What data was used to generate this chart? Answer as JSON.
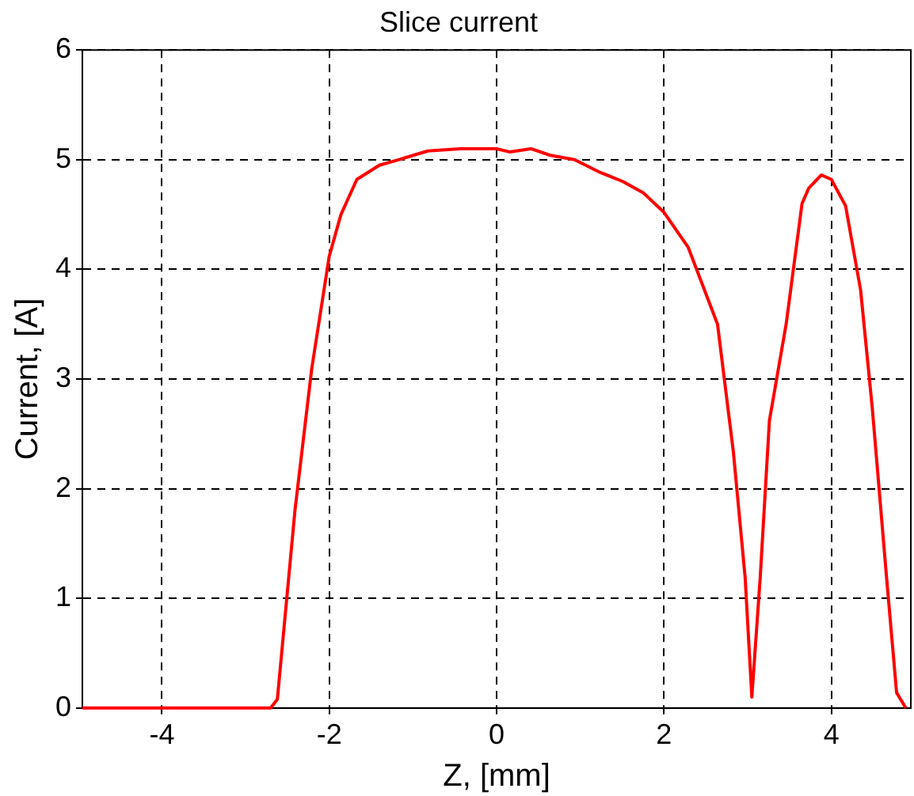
{
  "chart_data": {
    "type": "line",
    "title": "Slice current",
    "xlabel": "Z, [mm]",
    "ylabel": "Current, [A]",
    "xlim": [
      -4.95,
      4.95
    ],
    "ylim": [
      0,
      6
    ],
    "xticks": [
      -4,
      -2,
      0,
      2,
      4
    ],
    "yticks": [
      0,
      1,
      2,
      3,
      4,
      5,
      6
    ],
    "grid": true,
    "legend": false,
    "marker": "none",
    "line_style": "solid",
    "series": [
      {
        "color": "#ff0000",
        "x": [
          -4.95,
          -2.7,
          -2.62,
          -2.41,
          -2.21,
          -2.0,
          -1.86,
          -1.67,
          -1.4,
          -1.17,
          -0.82,
          -0.43,
          0,
          0.16,
          0.41,
          0.64,
          0.93,
          1.22,
          1.51,
          1.75,
          2.0,
          2.29,
          2.64,
          2.83,
          2.97,
          3.05,
          3.15,
          3.26,
          3.46,
          3.65,
          3.73,
          3.88,
          4.0,
          4.17,
          4.35,
          4.49,
          4.66,
          4.78,
          4.89
        ],
        "values": [
          0,
          0,
          0.08,
          1.8,
          3.09,
          4.12,
          4.5,
          4.82,
          4.95,
          5.0,
          5.08,
          5.1,
          5.1,
          5.07,
          5.1,
          5.04,
          5.0,
          4.89,
          4.8,
          4.7,
          4.52,
          4.2,
          3.5,
          2.33,
          1.19,
          0.1,
          1.19,
          2.62,
          3.5,
          4.6,
          4.74,
          4.86,
          4.82,
          4.58,
          3.81,
          2.73,
          1.19,
          0.14,
          0
        ]
      }
    ]
  }
}
